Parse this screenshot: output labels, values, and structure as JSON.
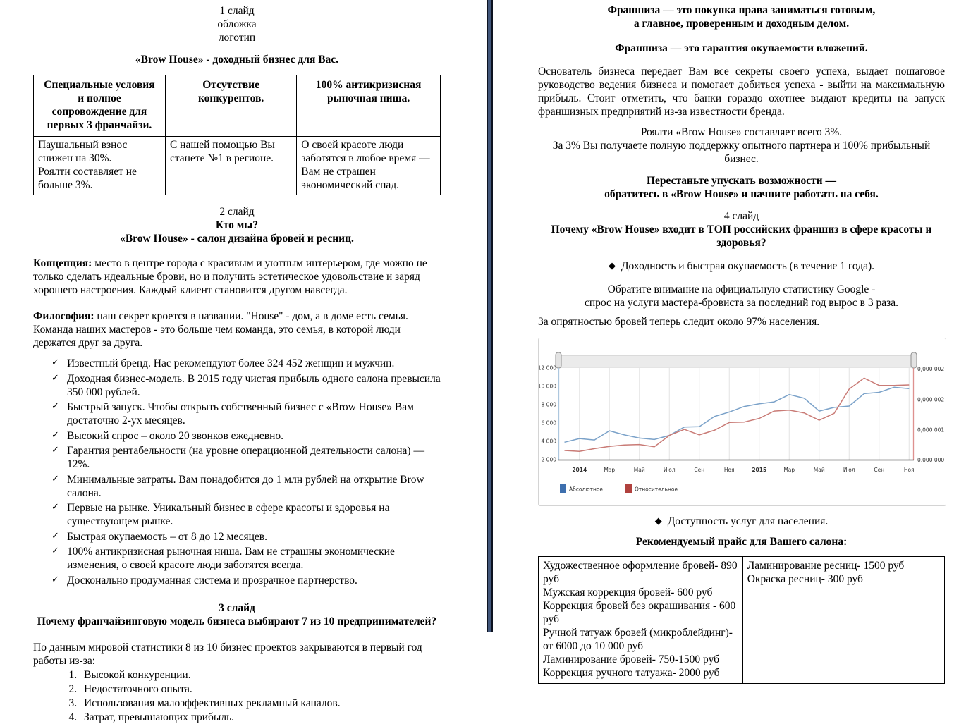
{
  "icons": {
    "check": "✓",
    "diamond": "◆"
  },
  "left": {
    "slide1": [
      "1 слайд",
      "обложка",
      "логотип"
    ],
    "title": "«Brow House» - доходный бизнес для Вас.",
    "table": {
      "headers": [
        "Специальные условия и полное сопровождение для первых 3 франчайзи.",
        "Отсутствие конкурентов.",
        "100% антикризисная рыночная ниша."
      ],
      "cells": {
        "c1": [
          "Паушальный взнос снижен на 30%.",
          "Роялти составляет не больше 3%."
        ],
        "c2": [
          "С нашей помощью Вы станете №1  в регионе."
        ],
        "c3": [
          "О своей красоте люди заботятся в любое  время — Вам не страшен экономический спад."
        ]
      }
    },
    "slide2": {
      "label": "2 слайд",
      "line1": "Кто мы?",
      "line2": "«Brow House» - салон дизайна бровей и ресниц."
    },
    "concept": {
      "label": "Концепция:",
      "text": "место в центре города с красивым и уютным интерьером, где можно не только сделать идеальные  брови, но и получить эстетическое  удовольствие и заряд хорошего настроения. Каждый  клиент становится  другом навсегда."
    },
    "philosophy": {
      "label": "Философия:",
      "text": "наш секрет кроется в названии. \"House\" - дом, а в доме есть семья.  Команда наших мастеров - это больше чем команда, это семья, в которой люди держатся друг за друга."
    },
    "check_items": [
      "Известный бренд. Нас рекомендуют  более 324 452 женщин и мужчин.",
      "Доходная бизнес-модель. В 2015 году чистая прибыль одного салона превысила 350 000 рублей.",
      "Быстрый запуск. Чтобы открыть собственный бизнес с «Brow House» Вам достаточно 2-ух месяцев.",
      "Высокий спрос – около 20 звонков ежедневно.",
      "Гарантия рентабельности  (на уровне операционной деятельности  салона) — 12%.",
      "Минимальные затраты. Вам понадобится до 1 млн рублей на открытие Brow салона.",
      "Первые на рынке. Уникальный бизнес в сфере красоты и здоровья на существующем рынке.",
      "Быстрая окупаемость – от 8 до 12 месяцев.",
      "100% антикризисная рыночная ниша. Вам не страшны экономические изменения, о своей красоте люди заботятся всегда.",
      "Досконально продуманная система и прозрачное партнерство."
    ],
    "slide3": {
      "label": "3 слайд",
      "title": "Почему франчайзинговую модель бизнеса выбирают 7 из 10 предпринимателей?"
    },
    "stats_intro": "По данным мировой статистики 8 из 10 бизнес проектов закрываются  в первый год работы из-за:",
    "reasons": [
      "Высокой конкуренции.",
      "Недостаточного опыта.",
      "Использования малоэффективных  рекламный каналов.",
      "Затрат, превышающих прибыль."
    ]
  },
  "right": {
    "head1_line1": "Франшиза — это покупка права заниматься готовым,",
    "head1_line2": "а главное, проверенным и доходным делом.",
    "head2": "Франшиза — это гарантия окупаемости вложений.",
    "para1": "Основатель бизнеса передает Вам все секреты своего успеха, выдает пошаговое руководство ведения бизнеса и помогает добиться  успеха - выйти на максимальную прибыль.  Стоит отметить, что банки гораздо охотнее выдают кредиты на запуск франшизных предприятий из-за известности бренда.",
    "royalty_line1": "Роялти «Brow House» составляет  всего 3%.",
    "royalty_line2": "За 3% Вы получаете полную поддержку опытного партнера и 100% прибыльный бизнес.",
    "cta_line1": "Перестаньте упускать возможности —",
    "cta_line2": "обратитесь в «Brow House» и начните работать на себя.",
    "slide4_label": "4 слайд",
    "slide4_title": "Почему «Brow House» входит в ТОП российских  франшиз в сфере красоты и здоровья?",
    "bullet_profit": "Доходность и быстрая  окупаемость  (в течение 1 года).",
    "google_line1": "Обратите внимание на официальную статистику Google -",
    "google_line2": "спрос на услуги мастера-бровиста  за последний год вырос в 3 раза.",
    "stat_line": "За опрятностью  бровей теперь следит около 97% населения.",
    "bullet_access": "Доступность услуг для населения.",
    "price_title": "Рекомендуемый прайс для Вашего салона:",
    "price_table": {
      "col1": [
        "Художественное оформление  бровей- 890 руб",
        "Мужская коррекция бровей- 600 руб",
        "Коррекция бровей без окрашивания - 600 руб",
        "Ручной татуаж бровей (микроблейдинг)-",
        "от 6000 до 10 000 руб",
        "Ламинирование бровей- 750-1500 руб",
        "Коррекция ручного татуажа- 2000 руб"
      ],
      "col2": [
        "Ламинирование ресниц- 1500 руб",
        "Окраска ресниц- 300 руб"
      ]
    }
  },
  "chart_data": {
    "type": "line",
    "x_tick_labels": [
      "2014",
      "Мар",
      "Май",
      "Июл",
      "Сен",
      "Ноя",
      "2015",
      "Мар",
      "Май",
      "Июл",
      "Сен",
      "Ноя"
    ],
    "bold_x_labels": [
      0,
      6
    ],
    "y_ticks_left": [
      "12 000",
      "10 000",
      "8 000",
      "6 000",
      "4 000",
      "2 000"
    ],
    "y_ticks_right": [
      "0,000 002",
      "0,000 002",
      "0,000 001",
      "0,000 000 5"
    ],
    "ylim": [
      2000,
      12000
    ],
    "grid": "vertical",
    "legend_position": "bottom-left",
    "series": [
      {
        "name": "Абсолютное",
        "line_color": "#7ba2c9",
        "legend_color": "#3d6fae",
        "values": [
          3900,
          4300,
          4150,
          5150,
          4700,
          4350,
          4200,
          4650,
          5550,
          5600,
          6700,
          7200,
          7800,
          8100,
          8300,
          9100,
          8700,
          7300,
          7700,
          7850,
          9200,
          9350,
          9900,
          9750
        ]
      },
      {
        "name": "Относительное",
        "line_color": "#c97b76",
        "legend_color": "#b0413e",
        "values": [
          3000,
          2900,
          3200,
          3450,
          3600,
          3650,
          3400,
          4650,
          5300,
          4700,
          5200,
          6050,
          6100,
          6500,
          7300,
          7400,
          7100,
          6300,
          7050,
          9700,
          10900,
          10100,
          10100,
          10150
        ]
      }
    ],
    "colors": {
      "strip_fill": "#ebebeb",
      "strip_border": "#c9c9c9",
      "handle_fill": "#e3e3e3",
      "handle_border": "#8f8f8f",
      "gridline": "#e4e4e4",
      "axis_bottom": "#4a4a4a",
      "axis_left": "#adc7de",
      "axis_right": "#de918f",
      "label": "#333333"
    }
  }
}
